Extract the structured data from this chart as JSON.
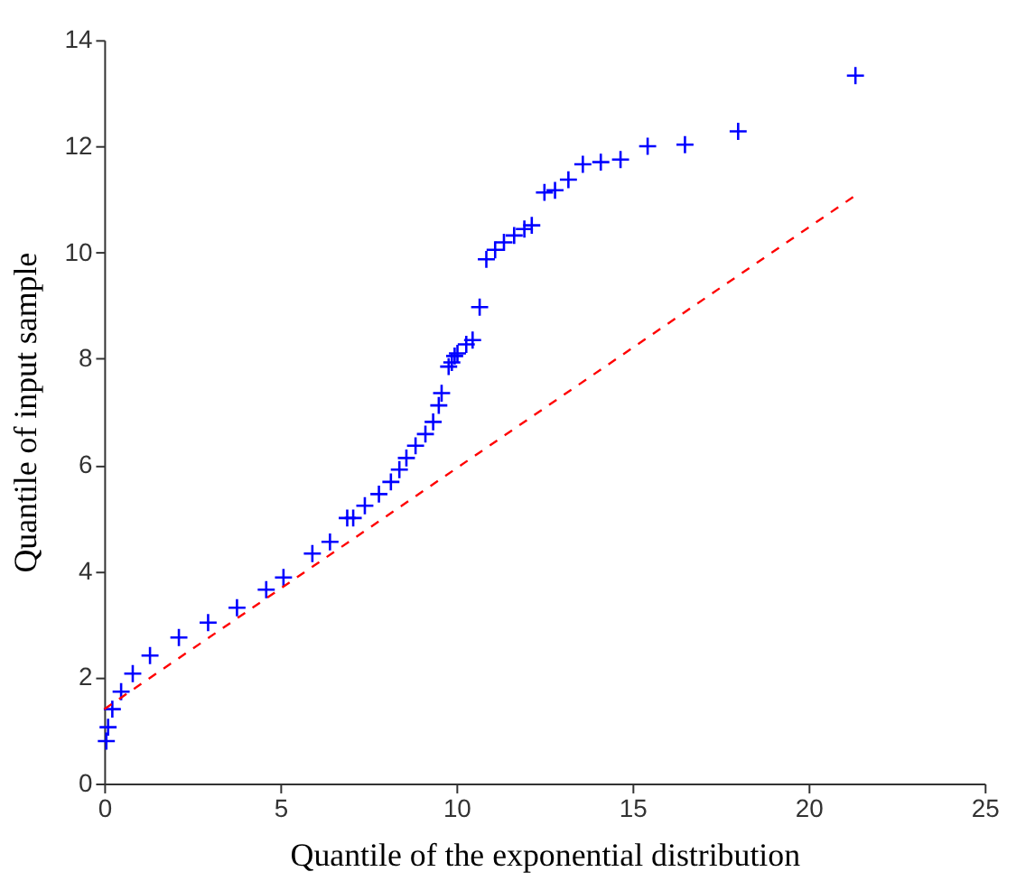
{
  "chart_data": {
    "type": "scatter",
    "xlabel": "Quantile of the exponential distribution",
    "ylabel": "Quantile of input sample",
    "xlim": [
      0,
      25
    ],
    "xticks": [
      0,
      5,
      10,
      15,
      20,
      25
    ],
    "ylim": [
      0,
      14
    ],
    "yticks": [
      0,
      2,
      4,
      6,
      8,
      10,
      12,
      14
    ],
    "grid": false,
    "series": [
      {
        "color": "#0000ff",
        "marker": "cross",
        "x": [
          0.06,
          0.11,
          0.23,
          0.48,
          0.81,
          1.3,
          2.12,
          2.95,
          3.77,
          4.6,
          5.09,
          5.91,
          6.41,
          6.9,
          7.07,
          7.4,
          7.8,
          8.14,
          8.38,
          8.58,
          8.84,
          9.12,
          9.34,
          9.5,
          9.58,
          9.78,
          9.87,
          9.95,
          10.03,
          10.28,
          10.46,
          10.66,
          10.85,
          11.1,
          11.35,
          11.64,
          11.93,
          12.14,
          12.5,
          12.8,
          13.18,
          13.59,
          14.1,
          14.66,
          15.43,
          16.49,
          18.0,
          21.33
        ],
        "values": [
          0.8,
          1.06,
          1.4,
          1.73,
          2.07,
          2.41,
          2.75,
          3.03,
          3.31,
          3.65,
          3.88,
          4.33,
          4.55,
          5.0,
          5.0,
          5.23,
          5.45,
          5.68,
          5.91,
          6.13,
          6.36,
          6.58,
          6.81,
          7.12,
          7.35,
          7.85,
          7.93,
          8.05,
          8.1,
          8.27,
          8.35,
          8.97,
          9.87,
          10.05,
          10.19,
          10.32,
          10.44,
          10.51,
          11.13,
          11.17,
          11.37,
          11.66,
          11.7,
          11.75,
          12.0,
          12.03,
          12.28,
          13.33
        ]
      },
      {
        "type": "line",
        "color": "#ff0000",
        "line_style": "dashed",
        "marker": "none",
        "x": [
          0,
          21.3
        ],
        "values": [
          1.4,
          11.06
        ]
      }
    ]
  }
}
